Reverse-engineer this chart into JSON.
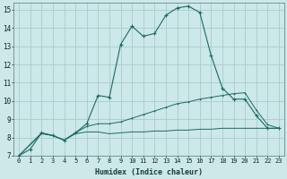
{
  "xlabel": "Humidex (Indice chaleur)",
  "bg_color": "#cce8e8",
  "grid_color": "#aacccc",
  "line_color": "#1a6b5e",
  "xlim": [
    -0.5,
    23.5
  ],
  "ylim": [
    7,
    15.4
  ],
  "xticks": [
    0,
    1,
    2,
    3,
    4,
    5,
    6,
    7,
    8,
    9,
    10,
    11,
    12,
    13,
    14,
    15,
    16,
    17,
    18,
    19,
    20,
    21,
    22,
    23
  ],
  "yticks": [
    7,
    8,
    9,
    10,
    11,
    12,
    13,
    14,
    15
  ],
  "curve1_x": [
    0,
    1,
    2,
    3,
    4,
    5,
    6,
    7,
    8,
    9,
    10,
    11,
    12,
    13,
    14,
    15,
    16,
    17,
    18,
    19,
    20,
    21,
    22,
    23
  ],
  "curve1_y": [
    7.0,
    7.35,
    8.25,
    8.1,
    7.85,
    8.25,
    8.75,
    10.3,
    10.2,
    13.1,
    14.1,
    13.55,
    13.7,
    14.7,
    15.1,
    15.2,
    14.85,
    12.5,
    10.7,
    10.1,
    10.1,
    9.2,
    8.5,
    8.5
  ],
  "curve2_x": [
    0,
    2,
    3,
    4,
    5,
    6,
    7,
    8,
    9,
    10,
    11,
    12,
    13,
    14,
    15,
    16,
    17,
    18,
    19,
    20,
    21,
    22,
    23
  ],
  "curve2_y": [
    7.0,
    8.25,
    8.1,
    7.85,
    8.25,
    8.6,
    8.75,
    8.75,
    8.85,
    9.05,
    9.25,
    9.45,
    9.65,
    9.85,
    9.95,
    10.1,
    10.2,
    10.3,
    10.4,
    10.45,
    9.5,
    8.7,
    8.5
  ],
  "curve3_x": [
    0,
    2,
    3,
    4,
    5,
    6,
    7,
    8,
    9,
    10,
    11,
    12,
    13,
    14,
    15,
    16,
    17,
    18,
    19,
    20,
    21,
    22,
    23
  ],
  "curve3_y": [
    7.0,
    8.2,
    8.1,
    7.85,
    8.2,
    8.3,
    8.3,
    8.2,
    8.25,
    8.3,
    8.3,
    8.35,
    8.35,
    8.4,
    8.4,
    8.45,
    8.45,
    8.5,
    8.5,
    8.5,
    8.5,
    8.5,
    8.5
  ]
}
